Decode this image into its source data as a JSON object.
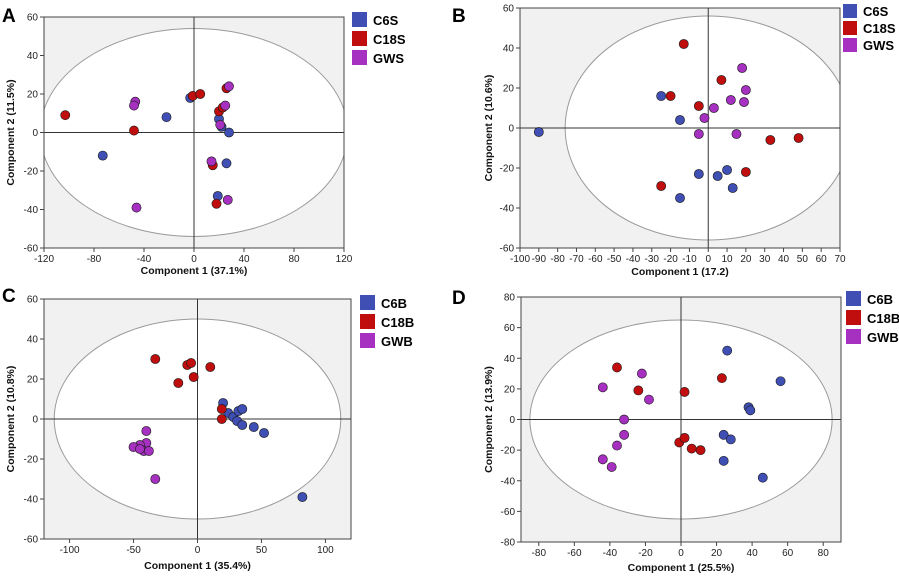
{
  "figure": {
    "colors": {
      "C6": "#3f4fb4",
      "C18": "#c00e0e",
      "GW": "#a630c0"
    },
    "panels": [
      {
        "letter": "A",
        "legend": [
          {
            "label": "C6S",
            "color": "#3f4fb4"
          },
          {
            "label": "C18S",
            "color": "#c00e0e"
          },
          {
            "label": "GWS",
            "color": "#a630c0"
          }
        ],
        "chart_data": {
          "type": "scatter",
          "xlabel": "Component 1 (37.1%)",
          "ylabel": "Component 2 (11.5%)",
          "xlim": [
            -120,
            120
          ],
          "ylim": [
            -60,
            60
          ],
          "xticks": [
            -120,
            -80,
            -40,
            0,
            40,
            80,
            120
          ],
          "yticks": [
            -60,
            -40,
            -20,
            0,
            20,
            40,
            60
          ],
          "xtick_labels": [
            "-120",
            "-80",
            "-40",
            "0",
            "40",
            "80",
            "120"
          ],
          "ytick_labels": [
            "-60",
            "-40",
            "-20",
            "0",
            "20",
            "40",
            "60"
          ],
          "ellipse": {
            "rx": 123,
            "ry": 54
          },
          "series": [
            {
              "name": "C6S",
              "points": [
                [
                  -73,
                  -12
                ],
                [
                  -22,
                  8
                ],
                [
                  -3,
                  18
                ],
                [
                  20,
                  7
                ],
                [
                  22,
                  3
                ],
                [
                  26,
                  -16
                ],
                [
                  28,
                  0
                ],
                [
                  19,
                  -33
                ]
              ]
            },
            {
              "name": "C18S",
              "points": [
                [
                  -103,
                  9
                ],
                [
                  -48,
                  1
                ],
                [
                  -1,
                  19
                ],
                [
                  5,
                  20
                ],
                [
                  20,
                  11
                ],
                [
                  23,
                  13
                ],
                [
                  15,
                  -17
                ],
                [
                  18,
                  -37
                ],
                [
                  26,
                  23
                ]
              ]
            },
            {
              "name": "GWS",
              "points": [
                [
                  -47,
                  16
                ],
                [
                  -48,
                  14
                ],
                [
                  -46,
                  -39
                ],
                [
                  14,
                  -15
                ],
                [
                  21,
                  4
                ],
                [
                  25,
                  14
                ],
                [
                  28,
                  24
                ],
                [
                  27,
                  -35
                ]
              ]
            }
          ]
        }
      },
      {
        "letter": "B",
        "legend": [
          {
            "label": "C6S",
            "color": "#3f4fb4"
          },
          {
            "label": "C18S",
            "color": "#c00e0e"
          },
          {
            "label": "GWS",
            "color": "#a630c0"
          }
        ],
        "chart_data": {
          "type": "scatter",
          "xlabel": "Component 1 (17.2)",
          "ylabel": "Component 2 (10.6%)",
          "xlim": [
            -100,
            70
          ],
          "ylim": [
            -60,
            60
          ],
          "xticks": [
            -100,
            -90,
            -80,
            -70,
            -60,
            -50,
            -40,
            -30,
            -20,
            -10,
            0,
            10,
            20,
            30,
            40,
            50,
            60,
            70
          ],
          "yticks": [
            -60,
            -40,
            -20,
            0,
            20,
            40,
            60
          ],
          "xtick_labels": [
            "-100",
            "-90",
            "-80",
            "-70",
            "-60",
            "-50",
            "-40",
            "-30",
            "-20",
            "-10",
            "0",
            "10",
            "20",
            "30",
            "40",
            "50",
            "60",
            "70"
          ],
          "ytick_labels": [
            "-60",
            "-40",
            "-20",
            "0",
            "20",
            "40",
            "60"
          ],
          "ellipse": {
            "rx": 76,
            "ry": 56
          },
          "series": [
            {
              "name": "C6S",
              "points": [
                [
                  -90,
                  -2
                ],
                [
                  -25,
                  16
                ],
                [
                  -15,
                  4
                ],
                [
                  -15,
                  -35
                ],
                [
                  -5,
                  -23
                ],
                [
                  5,
                  -24
                ],
                [
                  10,
                  -21
                ],
                [
                  13,
                  -30
                ]
              ]
            },
            {
              "name": "C18S",
              "points": [
                [
                  -13,
                  42
                ],
                [
                  -20,
                  16
                ],
                [
                  -5,
                  11
                ],
                [
                  7,
                  24
                ],
                [
                  20,
                  -22
                ],
                [
                  33,
                  -6
                ],
                [
                  48,
                  -5
                ],
                [
                  -25,
                  -29
                ]
              ]
            },
            {
              "name": "GWS",
              "points": [
                [
                  -5,
                  -3
                ],
                [
                  -2,
                  5
                ],
                [
                  3,
                  10
                ],
                [
                  12,
                  14
                ],
                [
                  15,
                  -3
                ],
                [
                  18,
                  30
                ],
                [
                  20,
                  19
                ],
                [
                  19,
                  13
                ]
              ]
            }
          ]
        }
      },
      {
        "letter": "C",
        "legend": [
          {
            "label": "C6B",
            "color": "#3f4fb4"
          },
          {
            "label": "C18B",
            "color": "#c00e0e"
          },
          {
            "label": "GWB",
            "color": "#a630c0"
          }
        ],
        "chart_data": {
          "type": "scatter",
          "xlabel": "Component 1 (35.4%)",
          "ylabel": "Component 2 (10.8%)",
          "xlim": [
            -120,
            120
          ],
          "ylim": [
            -60,
            60
          ],
          "xticks": [
            -100,
            -50,
            0,
            50,
            100
          ],
          "yticks": [
            -60,
            -40,
            -20,
            0,
            20,
            40,
            60
          ],
          "xtick_labels": [
            "-100",
            "-50",
            "0",
            "50",
            "100"
          ],
          "ytick_labels": [
            "-60",
            "-40",
            "-20",
            "0",
            "20",
            "40",
            "60"
          ],
          "ellipse": {
            "rx": 112,
            "ry": 50
          },
          "series": [
            {
              "name": "C6B",
              "points": [
                [
                  20,
                  8
                ],
                [
                  24,
                  3
                ],
                [
                  28,
                  1
                ],
                [
                  32,
                  4
                ],
                [
                  35,
                  5
                ],
                [
                  31,
                  -1
                ],
                [
                  35,
                  -3
                ],
                [
                  44,
                  -4
                ],
                [
                  52,
                  -7
                ],
                [
                  82,
                  -39
                ]
              ]
            },
            {
              "name": "C18B",
              "points": [
                [
                  -33,
                  30
                ],
                [
                  -15,
                  18
                ],
                [
                  -8,
                  27
                ],
                [
                  -5,
                  28
                ],
                [
                  -3,
                  21
                ],
                [
                  10,
                  26
                ],
                [
                  19,
                  5
                ],
                [
                  19,
                  0
                ]
              ]
            },
            {
              "name": "GWB",
              "points": [
                [
                  -40,
                  -6
                ],
                [
                  -40,
                  -12
                ],
                [
                  -45,
                  -13
                ],
                [
                  -50,
                  -14
                ],
                [
                  -42,
                  -16
                ],
                [
                  -45,
                  -15
                ],
                [
                  -38,
                  -16
                ],
                [
                  -33,
                  -30
                ]
              ]
            }
          ]
        }
      },
      {
        "letter": "D",
        "legend": [
          {
            "label": "C6B",
            "color": "#3f4fb4"
          },
          {
            "label": "C18B",
            "color": "#c00e0e"
          },
          {
            "label": "GWB",
            "color": "#a630c0"
          }
        ],
        "chart_data": {
          "type": "scatter",
          "xlabel": "Component 1 (25.5%)",
          "ylabel": "Component 2 (13.9%)",
          "xlim": [
            -90,
            90
          ],
          "ylim": [
            -80,
            80
          ],
          "xticks": [
            -80,
            -60,
            -40,
            -20,
            0,
            20,
            40,
            60,
            80
          ],
          "yticks": [
            -80,
            -60,
            -40,
            -20,
            0,
            20,
            40,
            60,
            80
          ],
          "xtick_labels": [
            "-80",
            "-60",
            "-40",
            "-20",
            "0",
            "20",
            "40",
            "60",
            "80"
          ],
          "ytick_labels": [
            "-80",
            "-60",
            "-40",
            "-20",
            "0",
            "20",
            "40",
            "60",
            "80"
          ],
          "ellipse": {
            "rx": 85,
            "ry": 65
          },
          "series": [
            {
              "name": "C6B",
              "points": [
                [
                  26,
                  45
                ],
                [
                  56,
                  25
                ],
                [
                  38,
                  8
                ],
                [
                  39,
                  6
                ],
                [
                  24,
                  -10
                ],
                [
                  28,
                  -13
                ],
                [
                  24,
                  -27
                ],
                [
                  46,
                  -38
                ]
              ]
            },
            {
              "name": "C18B",
              "points": [
                [
                  -36,
                  34
                ],
                [
                  -24,
                  19
                ],
                [
                  2,
                  18
                ],
                [
                  23,
                  27
                ],
                [
                  -1,
                  -15
                ],
                [
                  2,
                  -12
                ],
                [
                  6,
                  -19
                ],
                [
                  11,
                  -20
                ]
              ]
            },
            {
              "name": "GWB",
              "points": [
                [
                  -22,
                  30
                ],
                [
                  -44,
                  21
                ],
                [
                  -18,
                  13
                ],
                [
                  -32,
                  0
                ],
                [
                  -32,
                  -10
                ],
                [
                  -36,
                  -17
                ],
                [
                  -44,
                  -26
                ],
                [
                  -39,
                  -31
                ]
              ]
            }
          ]
        }
      }
    ]
  }
}
